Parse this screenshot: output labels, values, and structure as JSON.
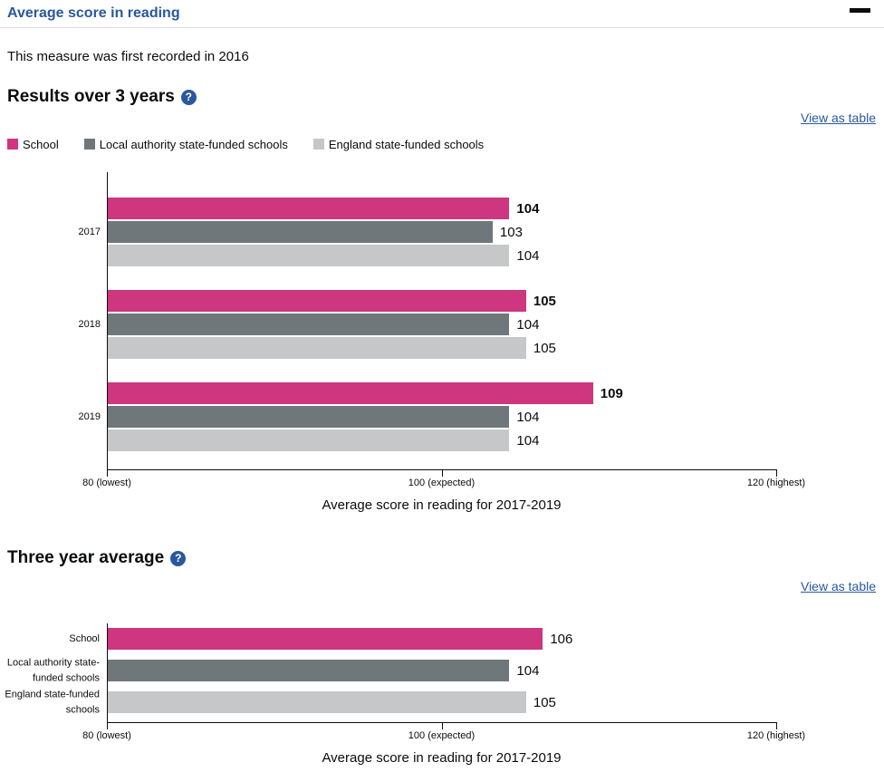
{
  "header": {
    "title": "Average score in reading",
    "collapse_icon": "minus-icon"
  },
  "intro": "This measure was first recorded in 2016",
  "sections": [
    {
      "heading": "Results over 3 years",
      "help_glyph": "?",
      "view_as_table": "View as table"
    },
    {
      "heading": "Three year average",
      "help_glyph": "?",
      "view_as_table": "View as table"
    }
  ],
  "legend": [
    {
      "label": "School",
      "color": "#ce367f"
    },
    {
      "label": "Local authority state-funded schools",
      "color": "#6f777b"
    },
    {
      "label": "England state-funded schools",
      "color": "#c5c7c9"
    }
  ],
  "colors": {
    "accent_pink": "#ce367f",
    "dark_grey": "#6f777b",
    "light_grey": "#c5c7c9",
    "link_blue": "#29589e",
    "text": "#0b0c0c"
  },
  "chart_data": [
    {
      "type": "bar",
      "orientation": "horizontal",
      "section": "Results over 3 years",
      "categories": [
        "2017",
        "2018",
        "2019"
      ],
      "series": [
        {
          "name": "School",
          "color": "#ce367f",
          "values": [
            104,
            105,
            109
          ],
          "value_labels_bold": true
        },
        {
          "name": "Local authority state-funded schools",
          "color": "#6f777b",
          "values": [
            103,
            104,
            104
          ],
          "value_labels_bold": false
        },
        {
          "name": "England state-funded schools",
          "color": "#c5c7c9",
          "values": [
            104,
            105,
            104
          ],
          "value_labels_bold": false
        }
      ],
      "xlim": [
        80,
        120
      ],
      "xticks": [
        {
          "value": 80,
          "label": "80 (lowest)"
        },
        {
          "value": 100,
          "label": "100 (expected)"
        },
        {
          "value": 120,
          "label": "120 (highest)"
        }
      ],
      "xlabel": "Average score in reading for 2017-2019",
      "grid": false,
      "legend_position": "top"
    },
    {
      "type": "bar",
      "orientation": "horizontal",
      "section": "Three year average",
      "categories": [
        "School",
        "Local authority state-funded schools",
        "England state-funded schools"
      ],
      "values": [
        106,
        104,
        105
      ],
      "colors": [
        "#ce367f",
        "#6f777b",
        "#c5c7c9"
      ],
      "xlim": [
        80,
        120
      ],
      "xticks": [
        {
          "value": 80,
          "label": "80 (lowest)"
        },
        {
          "value": 100,
          "label": "100 (expected)"
        },
        {
          "value": 120,
          "label": "120 (highest)"
        }
      ],
      "xlabel": "Average score in reading for 2017-2019",
      "grid": false
    }
  ]
}
